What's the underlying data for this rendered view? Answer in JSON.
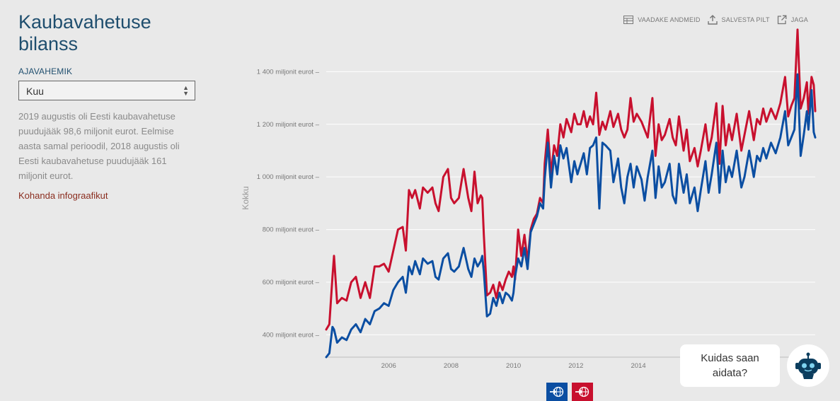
{
  "header": {
    "title_line1": "Kaubavahetuse",
    "title_line2": "bilanss"
  },
  "period": {
    "label": "AJAVAHEMIK",
    "selected": "Kuu"
  },
  "description": "2019 augustis oli Eesti kaubavahetuse puudujääk 98,6 miljonit eurot. Eelmise aasta samal perioodil, 2018 augustis oli Eesti kaubavahetuse puudujääk 161 miljonit eurot.",
  "customize_link": "Kohanda infograafikut",
  "toolbar": {
    "view_data": "VAADAKE ANDMEID",
    "save_image": "SALVESTA PILT",
    "share": "JAGA"
  },
  "chat": {
    "line1": "Kuidas saan",
    "line2": "aidata?"
  },
  "colors": {
    "export": "#0b4ea2",
    "import": "#c8102e",
    "title": "#1f4e6e"
  },
  "icons": {
    "view_data": "table-icon",
    "save_image": "upload-icon",
    "share": "external-link-icon",
    "bot": "robot-icon",
    "export_button": "globe-arrow-out-icon",
    "import_button": "globe-arrow-in-icon"
  },
  "chart_data": {
    "type": "line",
    "ylabel": "Kokku",
    "ylim": [
      315,
      1565
    ],
    "xlim": [
      2004.0,
      2019.667
    ],
    "yticks": [
      400,
      600,
      800,
      1000,
      1200,
      1400
    ],
    "ytick_labels": [
      "400 miljonit eurot",
      "600 miljonit eurot",
      "800 miljonit eurot",
      "1 000 miljonit eurot",
      "1 200 miljonit eurot",
      "1 400 miljonit eurot"
    ],
    "xticks": [
      2006,
      2008,
      2010,
      2012,
      2014
    ],
    "xtick_labels": [
      "2006",
      "2008",
      "2010",
      "2012",
      "2014"
    ],
    "grid": true,
    "series": [
      {
        "color": "#c8102e",
        "points": [
          [
            2004.0,
            420
          ],
          [
            2004.1,
            440
          ],
          [
            2004.2,
            620
          ],
          [
            2004.25,
            700
          ],
          [
            2004.35,
            520
          ],
          [
            2004.5,
            540
          ],
          [
            2004.65,
            530
          ],
          [
            2004.8,
            600
          ],
          [
            2004.95,
            620
          ],
          [
            2005.1,
            540
          ],
          [
            2005.25,
            600
          ],
          [
            2005.4,
            540
          ],
          [
            2005.55,
            660
          ],
          [
            2005.7,
            660
          ],
          [
            2005.85,
            670
          ],
          [
            2006.0,
            640
          ],
          [
            2006.15,
            720
          ],
          [
            2006.3,
            800
          ],
          [
            2006.45,
            810
          ],
          [
            2006.55,
            720
          ],
          [
            2006.65,
            950
          ],
          [
            2006.75,
            920
          ],
          [
            2006.85,
            950
          ],
          [
            2007.0,
            880
          ],
          [
            2007.1,
            960
          ],
          [
            2007.25,
            940
          ],
          [
            2007.4,
            960
          ],
          [
            2007.5,
            900
          ],
          [
            2007.6,
            870
          ],
          [
            2007.75,
            1000
          ],
          [
            2007.9,
            1030
          ],
          [
            2008.0,
            920
          ],
          [
            2008.1,
            900
          ],
          [
            2008.25,
            920
          ],
          [
            2008.4,
            1030
          ],
          [
            2008.55,
            920
          ],
          [
            2008.65,
            870
          ],
          [
            2008.75,
            1020
          ],
          [
            2008.85,
            900
          ],
          [
            2008.95,
            930
          ],
          [
            2009.0,
            920
          ],
          [
            2009.05,
            780
          ],
          [
            2009.15,
            550
          ],
          [
            2009.25,
            560
          ],
          [
            2009.35,
            590
          ],
          [
            2009.45,
            540
          ],
          [
            2009.55,
            600
          ],
          [
            2009.65,
            570
          ],
          [
            2009.75,
            610
          ],
          [
            2009.85,
            640
          ],
          [
            2009.95,
            620
          ],
          [
            2010.0,
            660
          ],
          [
            2010.05,
            610
          ],
          [
            2010.15,
            800
          ],
          [
            2010.25,
            700
          ],
          [
            2010.35,
            780
          ],
          [
            2010.45,
            680
          ],
          [
            2010.55,
            800
          ],
          [
            2010.65,
            840
          ],
          [
            2010.75,
            860
          ],
          [
            2010.85,
            920
          ],
          [
            2010.95,
            900
          ],
          [
            2011.0,
            1050
          ],
          [
            2011.1,
            1180
          ],
          [
            2011.2,
            1010
          ],
          [
            2011.3,
            1120
          ],
          [
            2011.4,
            1080
          ],
          [
            2011.5,
            1200
          ],
          [
            2011.6,
            1150
          ],
          [
            2011.7,
            1220
          ],
          [
            2011.85,
            1170
          ],
          [
            2011.95,
            1240
          ],
          [
            2012.05,
            1200
          ],
          [
            2012.15,
            1200
          ],
          [
            2012.25,
            1250
          ],
          [
            2012.35,
            1190
          ],
          [
            2012.45,
            1230
          ],
          [
            2012.55,
            1200
          ],
          [
            2012.65,
            1320
          ],
          [
            2012.75,
            1160
          ],
          [
            2012.85,
            1210
          ],
          [
            2012.95,
            1180
          ],
          [
            2013.1,
            1250
          ],
          [
            2013.2,
            1190
          ],
          [
            2013.35,
            1240
          ],
          [
            2013.45,
            1180
          ],
          [
            2013.55,
            1150
          ],
          [
            2013.65,
            1180
          ],
          [
            2013.75,
            1300
          ],
          [
            2013.85,
            1210
          ],
          [
            2013.95,
            1240
          ],
          [
            2014.1,
            1210
          ],
          [
            2014.2,
            1180
          ],
          [
            2014.3,
            1150
          ],
          [
            2014.45,
            1300
          ],
          [
            2014.55,
            1080
          ],
          [
            2014.65,
            1200
          ],
          [
            2014.75,
            1140
          ],
          [
            2014.85,
            1160
          ],
          [
            2015.0,
            1220
          ],
          [
            2015.1,
            1150
          ],
          [
            2015.2,
            1120
          ],
          [
            2015.3,
            1230
          ],
          [
            2015.45,
            1100
          ],
          [
            2015.55,
            1180
          ],
          [
            2015.65,
            1060
          ],
          [
            2015.8,
            1110
          ],
          [
            2015.9,
            1040
          ],
          [
            2016.0,
            1100
          ],
          [
            2016.15,
            1200
          ],
          [
            2016.25,
            1100
          ],
          [
            2016.35,
            1150
          ],
          [
            2016.5,
            1280
          ],
          [
            2016.6,
            1050
          ],
          [
            2016.7,
            1270
          ],
          [
            2016.8,
            1120
          ],
          [
            2016.9,
            1200
          ],
          [
            2017.0,
            1140
          ],
          [
            2017.15,
            1240
          ],
          [
            2017.3,
            1100
          ],
          [
            2017.4,
            1160
          ],
          [
            2017.55,
            1250
          ],
          [
            2017.7,
            1140
          ],
          [
            2017.8,
            1220
          ],
          [
            2017.9,
            1200
          ],
          [
            2018.0,
            1260
          ],
          [
            2018.1,
            1210
          ],
          [
            2018.25,
            1260
          ],
          [
            2018.4,
            1220
          ],
          [
            2018.55,
            1280
          ],
          [
            2018.7,
            1380
          ],
          [
            2018.8,
            1230
          ],
          [
            2018.9,
            1270
          ],
          [
            2019.0,
            1300
          ],
          [
            2019.1,
            1560
          ],
          [
            2019.2,
            1260
          ],
          [
            2019.3,
            1300
          ],
          [
            2019.4,
            1360
          ],
          [
            2019.45,
            1240
          ],
          [
            2019.55,
            1380
          ],
          [
            2019.62,
            1350
          ],
          [
            2019.667,
            1250
          ]
        ]
      },
      {
        "color": "#0b4ea2",
        "points": [
          [
            2004.0,
            315
          ],
          [
            2004.1,
            330
          ],
          [
            2004.2,
            430
          ],
          [
            2004.25,
            420
          ],
          [
            2004.35,
            370
          ],
          [
            2004.5,
            390
          ],
          [
            2004.65,
            380
          ],
          [
            2004.8,
            420
          ],
          [
            2004.95,
            440
          ],
          [
            2005.1,
            410
          ],
          [
            2005.25,
            460
          ],
          [
            2005.4,
            440
          ],
          [
            2005.55,
            490
          ],
          [
            2005.7,
            500
          ],
          [
            2005.85,
            520
          ],
          [
            2006.0,
            510
          ],
          [
            2006.15,
            570
          ],
          [
            2006.3,
            600
          ],
          [
            2006.45,
            620
          ],
          [
            2006.55,
            560
          ],
          [
            2006.65,
            660
          ],
          [
            2006.75,
            630
          ],
          [
            2006.85,
            680
          ],
          [
            2007.0,
            630
          ],
          [
            2007.1,
            690
          ],
          [
            2007.25,
            670
          ],
          [
            2007.4,
            680
          ],
          [
            2007.5,
            620
          ],
          [
            2007.6,
            610
          ],
          [
            2007.75,
            690
          ],
          [
            2007.9,
            710
          ],
          [
            2008.0,
            650
          ],
          [
            2008.1,
            640
          ],
          [
            2008.25,
            660
          ],
          [
            2008.4,
            730
          ],
          [
            2008.55,
            650
          ],
          [
            2008.65,
            620
          ],
          [
            2008.75,
            690
          ],
          [
            2008.85,
            660
          ],
          [
            2008.95,
            680
          ],
          [
            2009.0,
            700
          ],
          [
            2009.05,
            640
          ],
          [
            2009.15,
            470
          ],
          [
            2009.25,
            480
          ],
          [
            2009.35,
            540
          ],
          [
            2009.45,
            510
          ],
          [
            2009.55,
            560
          ],
          [
            2009.65,
            520
          ],
          [
            2009.75,
            560
          ],
          [
            2009.85,
            550
          ],
          [
            2009.95,
            530
          ],
          [
            2010.0,
            560
          ],
          [
            2010.05,
            620
          ],
          [
            2010.15,
            690
          ],
          [
            2010.25,
            660
          ],
          [
            2010.35,
            730
          ],
          [
            2010.45,
            650
          ],
          [
            2010.55,
            790
          ],
          [
            2010.65,
            820
          ],
          [
            2010.75,
            850
          ],
          [
            2010.85,
            900
          ],
          [
            2010.95,
            880
          ],
          [
            2011.0,
            990
          ],
          [
            2011.1,
            1130
          ],
          [
            2011.2,
            960
          ],
          [
            2011.3,
            1080
          ],
          [
            2011.4,
            1010
          ],
          [
            2011.5,
            1120
          ],
          [
            2011.6,
            1070
          ],
          [
            2011.7,
            1110
          ],
          [
            2011.85,
            980
          ],
          [
            2011.95,
            1060
          ],
          [
            2012.05,
            1010
          ],
          [
            2012.15,
            1050
          ],
          [
            2012.25,
            1090
          ],
          [
            2012.35,
            1010
          ],
          [
            2012.45,
            1110
          ],
          [
            2012.55,
            1120
          ],
          [
            2012.65,
            1150
          ],
          [
            2012.75,
            880
          ],
          [
            2012.85,
            1130
          ],
          [
            2012.95,
            1120
          ],
          [
            2013.1,
            1100
          ],
          [
            2013.2,
            980
          ],
          [
            2013.35,
            1070
          ],
          [
            2013.45,
            960
          ],
          [
            2013.55,
            900
          ],
          [
            2013.65,
            1000
          ],
          [
            2013.75,
            1050
          ],
          [
            2013.85,
            960
          ],
          [
            2013.95,
            1040
          ],
          [
            2014.1,
            990
          ],
          [
            2014.2,
            910
          ],
          [
            2014.3,
            1000
          ],
          [
            2014.45,
            1100
          ],
          [
            2014.55,
            920
          ],
          [
            2014.65,
            1040
          ],
          [
            2014.75,
            960
          ],
          [
            2014.85,
            980
          ],
          [
            2015.0,
            1050
          ],
          [
            2015.1,
            930
          ],
          [
            2015.2,
            900
          ],
          [
            2015.3,
            1050
          ],
          [
            2015.45,
            940
          ],
          [
            2015.55,
            1010
          ],
          [
            2015.65,
            900
          ],
          [
            2015.8,
            960
          ],
          [
            2015.9,
            870
          ],
          [
            2016.0,
            950
          ],
          [
            2016.15,
            1060
          ],
          [
            2016.25,
            940
          ],
          [
            2016.35,
            1010
          ],
          [
            2016.5,
            1130
          ],
          [
            2016.6,
            940
          ],
          [
            2016.7,
            1100
          ],
          [
            2016.8,
            980
          ],
          [
            2016.9,
            1040
          ],
          [
            2017.0,
            1000
          ],
          [
            2017.15,
            1100
          ],
          [
            2017.3,
            960
          ],
          [
            2017.4,
            1000
          ],
          [
            2017.55,
            1100
          ],
          [
            2017.7,
            1000
          ],
          [
            2017.8,
            1080
          ],
          [
            2017.9,
            1060
          ],
          [
            2018.0,
            1110
          ],
          [
            2018.1,
            1070
          ],
          [
            2018.25,
            1130
          ],
          [
            2018.4,
            1090
          ],
          [
            2018.55,
            1150
          ],
          [
            2018.7,
            1250
          ],
          [
            2018.8,
            1120
          ],
          [
            2018.9,
            1150
          ],
          [
            2019.0,
            1180
          ],
          [
            2019.1,
            1390
          ],
          [
            2019.2,
            1080
          ],
          [
            2019.3,
            1160
          ],
          [
            2019.4,
            1250
          ],
          [
            2019.45,
            1180
          ],
          [
            2019.55,
            1330
          ],
          [
            2019.62,
            1170
          ],
          [
            2019.667,
            1150
          ]
        ]
      }
    ]
  }
}
